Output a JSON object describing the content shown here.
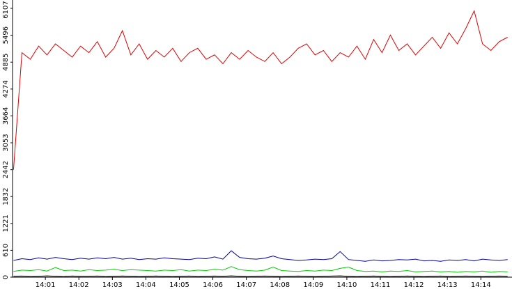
{
  "chart_data": {
    "type": "line",
    "x": [
      0.05,
      0.3,
      0.55,
      0.8,
      1.05,
      1.3,
      1.55,
      1.8,
      2.05,
      2.3,
      2.55,
      2.8,
      3.05,
      3.3,
      3.55,
      3.8,
      4.05,
      4.3,
      4.55,
      4.8,
      5.05,
      5.3,
      5.55,
      5.8,
      6.05,
      6.3,
      6.55,
      6.8,
      7.05,
      7.3,
      7.55,
      7.8,
      8.05,
      8.3,
      8.55,
      8.8,
      9.05,
      9.3,
      9.55,
      9.8,
      10.05,
      10.3,
      10.55,
      10.8,
      11.05,
      11.3,
      11.55,
      11.8,
      12.05,
      12.3,
      12.55,
      12.8,
      13.05,
      13.3,
      13.55,
      13.8,
      14.05,
      14.3,
      14.55,
      14.8
    ],
    "series": [
      {
        "color": "#dd0000",
        "values": [
          2442,
          5100,
          4950,
          5250,
          5050,
          5300,
          5150,
          5000,
          5250,
          5100,
          5350,
          5000,
          5200,
          5600,
          5050,
          5300,
          4950,
          5150,
          5000,
          5200,
          4900,
          5100,
          5200,
          4950,
          5050,
          4850,
          5100,
          4950,
          5150,
          5000,
          4900,
          5100,
          4850,
          5000,
          5200,
          5300,
          5050,
          5150,
          4900,
          5100,
          5000,
          5250,
          4950,
          5400,
          5100,
          5500,
          5150,
          5300,
          5050,
          5250,
          5450,
          5200,
          5550,
          5300,
          5650,
          6050,
          5300,
          5150,
          5350,
          5450
        ]
      },
      {
        "color": "#0000aa",
        "values": [
          380,
          420,
          400,
          440,
          410,
          450,
          420,
          400,
          430,
          410,
          440,
          420,
          450,
          410,
          430,
          400,
          420,
          410,
          440,
          420,
          410,
          400,
          430,
          420,
          460,
          410,
          600,
          450,
          420,
          410,
          430,
          480,
          420,
          400,
          380,
          390,
          410,
          400,
          420,
          580,
          400,
          380,
          360,
          390,
          370,
          380,
          400,
          390,
          410,
          370,
          380,
          360,
          390,
          380,
          400,
          370,
          410,
          390,
          380,
          400
        ]
      },
      {
        "color": "#00cc00",
        "values": [
          130,
          160,
          150,
          170,
          140,
          220,
          150,
          160,
          140,
          170,
          150,
          160,
          180,
          150,
          170,
          160,
          150,
          140,
          160,
          150,
          170,
          140,
          160,
          150,
          180,
          160,
          240,
          170,
          150,
          140,
          160,
          230,
          150,
          140,
          130,
          150,
          140,
          160,
          150,
          200,
          230,
          150,
          130,
          140,
          120,
          140,
          130,
          150,
          120,
          130,
          140,
          120,
          130,
          110,
          130,
          120,
          140,
          110,
          130,
          120
        ]
      },
      {
        "color": "#000000",
        "values": [
          20,
          25,
          15,
          20,
          30,
          20,
          15,
          25,
          20,
          20,
          25,
          15,
          20,
          25,
          20,
          15,
          20,
          25,
          20,
          15,
          20,
          25,
          15,
          20,
          25,
          20,
          30,
          20,
          15,
          20,
          25,
          20,
          15,
          20,
          25,
          20,
          15,
          20,
          25,
          30,
          20,
          15,
          20,
          25,
          20,
          15,
          20,
          25,
          20,
          15,
          20,
          25,
          15,
          20,
          25,
          20,
          15,
          20,
          25,
          20
        ]
      }
    ],
    "xlim": [
      0.02,
      14.93
    ],
    "xticks": [
      {
        "value": 1,
        "label": "14:01"
      },
      {
        "value": 2,
        "label": "14:02"
      },
      {
        "value": 3,
        "label": "14:03"
      },
      {
        "value": 4,
        "label": "14:04"
      },
      {
        "value": 5,
        "label": "14:05"
      },
      {
        "value": 6,
        "label": "14:06"
      },
      {
        "value": 7,
        "label": "14:07"
      },
      {
        "value": 8,
        "label": "14:08"
      },
      {
        "value": 9,
        "label": "14:09"
      },
      {
        "value": 10,
        "label": "14:10"
      },
      {
        "value": 11,
        "label": "14:11"
      },
      {
        "value": 12,
        "label": "14:12"
      },
      {
        "value": 13,
        "label": "14:13"
      },
      {
        "value": 14,
        "label": "14:14"
      }
    ],
    "ylim": [
      0,
      6107
    ],
    "yticks": [
      0,
      610,
      1221,
      1832,
      2442,
      3053,
      3664,
      4274,
      4885,
      5496,
      6107
    ]
  }
}
